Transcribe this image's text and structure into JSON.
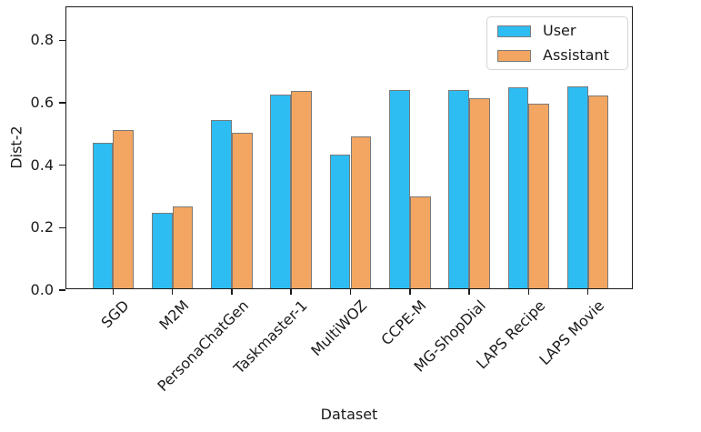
{
  "figure": {
    "background": "#ffffff"
  },
  "chart_data": {
    "type": "bar",
    "title": "",
    "xlabel": "Dataset",
    "ylabel": "Dist-2",
    "categories": [
      "SGD",
      "M2M",
      "PersonaChatGen",
      "Taskmaster-1",
      "MultiWOZ",
      "CCPE-M",
      "MG-ShopDial",
      "LAPS Recipe",
      "LAPS Movie"
    ],
    "series": [
      {
        "name": "User",
        "color": "#2EBDF2",
        "values": [
          0.465,
          0.241,
          0.538,
          0.62,
          0.427,
          0.636,
          0.635,
          0.643,
          0.646
        ]
      },
      {
        "name": "Assistant",
        "color": "#F2A661",
        "values": [
          0.506,
          0.261,
          0.499,
          0.632,
          0.488,
          0.293,
          0.61,
          0.591,
          0.619
        ]
      }
    ],
    "bar_edge_color": "#7a7a7a",
    "axis_color": "#1a1a1a",
    "ylim": [
      0,
      0.906
    ],
    "yticks": [
      0.0,
      0.2,
      0.4,
      0.6,
      0.8
    ],
    "ytick_labels": [
      "0.0",
      "0.2",
      "0.4",
      "0.6",
      "0.8"
    ],
    "grid": false,
    "legend_position": "upper right"
  }
}
